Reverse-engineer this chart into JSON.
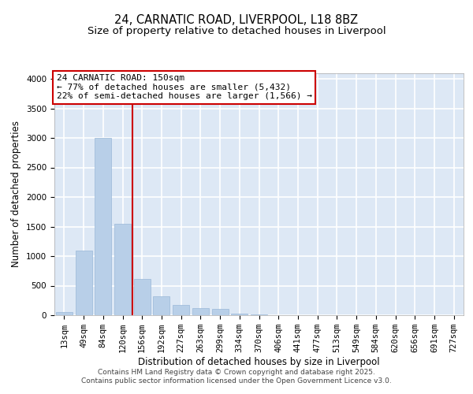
{
  "title_line1": "24, CARNATIC ROAD, LIVERPOOL, L18 8BZ",
  "title_line2": "Size of property relative to detached houses in Liverpool",
  "xlabel": "Distribution of detached houses by size in Liverpool",
  "ylabel": "Number of detached properties",
  "categories": [
    "13sqm",
    "49sqm",
    "84sqm",
    "120sqm",
    "156sqm",
    "192sqm",
    "227sqm",
    "263sqm",
    "299sqm",
    "334sqm",
    "370sqm",
    "406sqm",
    "441sqm",
    "477sqm",
    "513sqm",
    "549sqm",
    "584sqm",
    "620sqm",
    "656sqm",
    "691sqm",
    "727sqm"
  ],
  "values": [
    50,
    1100,
    3000,
    1550,
    620,
    320,
    175,
    115,
    110,
    30,
    10,
    5,
    2,
    0,
    0,
    0,
    0,
    0,
    0,
    0,
    0
  ],
  "bar_color": "#b8cfe8",
  "bar_edge_color": "#9ab8d8",
  "vline_color": "#cc0000",
  "vline_index": 3.5,
  "annotation_text": "24 CARNATIC ROAD: 150sqm\n← 77% of detached houses are smaller (5,432)\n22% of semi-detached houses are larger (1,566) →",
  "annotation_box_facecolor": "#ffffff",
  "annotation_box_edgecolor": "#cc0000",
  "ylim": [
    0,
    4100
  ],
  "yticks": [
    0,
    500,
    1000,
    1500,
    2000,
    2500,
    3000,
    3500,
    4000
  ],
  "background_color": "#dde8f5",
  "grid_color": "#ffffff",
  "footer_line1": "Contains HM Land Registry data © Crown copyright and database right 2025.",
  "footer_line2": "Contains public sector information licensed under the Open Government Licence v3.0.",
  "title1_fontsize": 10.5,
  "title2_fontsize": 9.5,
  "axis_label_fontsize": 8.5,
  "tick_fontsize": 7.5,
  "footer_fontsize": 6.5,
  "annot_fontsize": 8
}
